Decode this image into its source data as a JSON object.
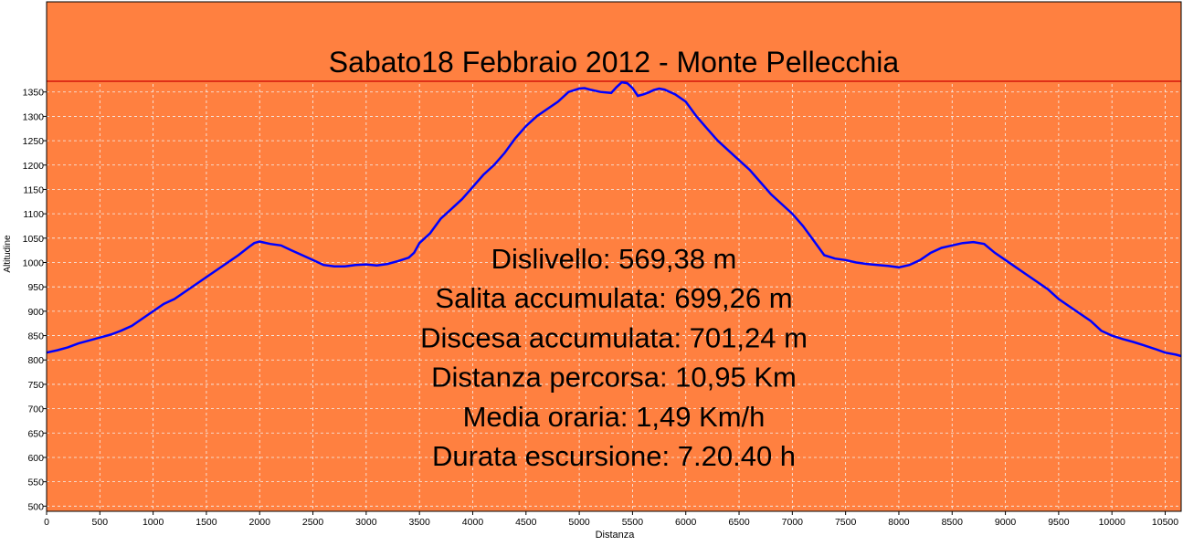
{
  "chart_data": {
    "type": "line",
    "title": "Sabato18 Febbraio 2012 - Monte Pellecchia",
    "xlabel": "Distanza",
    "ylabel": "Altitudine",
    "xlim": [
      0,
      10650
    ],
    "ylim": [
      495,
      1372
    ],
    "x_ticks": [
      0,
      500,
      1000,
      1500,
      2000,
      2500,
      3000,
      3500,
      4000,
      4500,
      5000,
      5500,
      6000,
      6500,
      7000,
      7500,
      8000,
      8500,
      9000,
      9500,
      10000,
      10500
    ],
    "y_ticks": [
      500,
      550,
      600,
      650,
      700,
      750,
      800,
      850,
      900,
      950,
      1000,
      1050,
      1100,
      1150,
      1200,
      1250,
      1300,
      1350
    ],
    "grid": true,
    "colors": {
      "background": "#ff8040",
      "line": "#0000ff",
      "title_line": "#cc0000"
    },
    "series": [
      {
        "x": [
          0,
          100,
          200,
          300,
          400,
          500,
          600,
          700,
          800,
          900,
          1000,
          1100,
          1200,
          1300,
          1400,
          1500,
          1600,
          1700,
          1800,
          1900,
          1950,
          2000,
          2100,
          2200,
          2300,
          2400,
          2500,
          2600,
          2700,
          2800,
          2900,
          3000,
          3100,
          3200,
          3300,
          3400,
          3450,
          3500,
          3600,
          3700,
          3800,
          3900,
          4000,
          4100,
          4200,
          4300,
          4400,
          4500,
          4600,
          4700,
          4800,
          4900,
          5000,
          5050,
          5100,
          5200,
          5300,
          5350,
          5400,
          5450,
          5500,
          5550,
          5600,
          5650,
          5700,
          5750,
          5800,
          5900,
          6000,
          6100,
          6200,
          6300,
          6400,
          6500,
          6600,
          6700,
          6800,
          6900,
          7000,
          7100,
          7200,
          7300,
          7400,
          7500,
          7600,
          7700,
          7800,
          7900,
          8000,
          8100,
          8200,
          8300,
          8400,
          8500,
          8600,
          8700,
          8800,
          8900,
          9000,
          9100,
          9200,
          9300,
          9400,
          9500,
          9600,
          9700,
          9800,
          9900,
          10000,
          10100,
          10200,
          10300,
          10400,
          10500,
          10600,
          10650
        ],
        "y": [
          815,
          820,
          826,
          834,
          840,
          846,
          852,
          860,
          870,
          885,
          900,
          915,
          925,
          940,
          955,
          970,
          985,
          1000,
          1015,
          1032,
          1040,
          1043,
          1038,
          1035,
          1025,
          1015,
          1005,
          995,
          992,
          992,
          995,
          996,
          994,
          997,
          1003,
          1010,
          1020,
          1040,
          1060,
          1090,
          1110,
          1130,
          1155,
          1180,
          1200,
          1225,
          1255,
          1280,
          1300,
          1315,
          1330,
          1350,
          1357,
          1358,
          1355,
          1350,
          1348,
          1360,
          1370,
          1368,
          1358,
          1342,
          1345,
          1349,
          1354,
          1357,
          1355,
          1345,
          1330,
          1300,
          1275,
          1250,
          1230,
          1210,
          1190,
          1165,
          1140,
          1120,
          1100,
          1075,
          1045,
          1015,
          1008,
          1005,
          1000,
          997,
          995,
          993,
          990,
          995,
          1005,
          1020,
          1030,
          1035,
          1040,
          1042,
          1038,
          1020,
          1005,
          990,
          975,
          960,
          945,
          925,
          910,
          895,
          880,
          860,
          850,
          843,
          837,
          830,
          823,
          815,
          811,
          808
        ]
      }
    ],
    "annotations": [
      "Dislivello: 569,38 m",
      "Salita accumulata: 699,26 m",
      "Discesa accumulata: 701,24 m",
      "Distanza percorsa: 10,95 Km",
      "Media oraria: 1,49 Km/h",
      "Durata escursione: 7.20.40 h"
    ]
  }
}
